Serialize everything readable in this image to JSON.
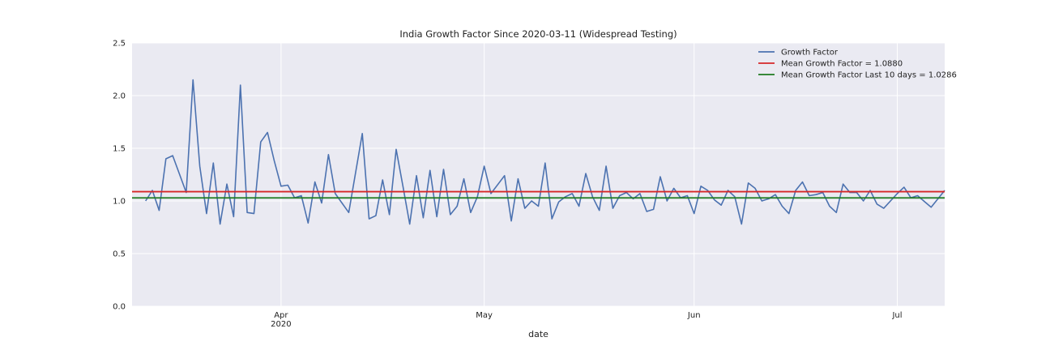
{
  "chart_data": {
    "type": "line",
    "title": "India Growth Factor Since 2020-03-11 (Widespread Testing)",
    "xlabel": "date",
    "ylabel": "",
    "ylim": [
      0.0,
      2.5
    ],
    "y_ticks": [
      0.0,
      0.5,
      1.0,
      1.5,
      2.0,
      2.5
    ],
    "y_tick_labels": [
      "0.0",
      "0.5",
      "1.0",
      "1.5",
      "2.0",
      "2.5"
    ],
    "xlim": [
      "2020-03-10",
      "2020-07-08"
    ],
    "x_ticks": [
      {
        "date": "2020-04-01",
        "label": "Apr",
        "sublabel": "2020"
      },
      {
        "date": "2020-05-01",
        "label": "May",
        "sublabel": ""
      },
      {
        "date": "2020-06-01",
        "label": "Jun",
        "sublabel": ""
      },
      {
        "date": "2020-07-01",
        "label": "Jul",
        "sublabel": ""
      }
    ],
    "grid": true,
    "legend_position": "top-right",
    "colors": {
      "background": "#eaeaf2",
      "growth": "#4c72b0",
      "mean": "#d62728",
      "mean10": "#1f7a1f",
      "grid": "#ffffff"
    },
    "series": [
      {
        "name": "Growth Factor",
        "kind": "line",
        "x": [
          "2020-03-12",
          "2020-03-13",
          "2020-03-14",
          "2020-03-15",
          "2020-03-16",
          "2020-03-18",
          "2020-03-19",
          "2020-03-20",
          "2020-03-21",
          "2020-03-22",
          "2020-03-23",
          "2020-03-24",
          "2020-03-25",
          "2020-03-26",
          "2020-03-27",
          "2020-03-28",
          "2020-03-29",
          "2020-03-30",
          "2020-03-31",
          "2020-04-01",
          "2020-04-02",
          "2020-04-03",
          "2020-04-04",
          "2020-04-05",
          "2020-04-06",
          "2020-04-07",
          "2020-04-08",
          "2020-04-09",
          "2020-04-10",
          "2020-04-11",
          "2020-04-13",
          "2020-04-14",
          "2020-04-15",
          "2020-04-16",
          "2020-04-17",
          "2020-04-18",
          "2020-04-19",
          "2020-04-20",
          "2020-04-21",
          "2020-04-22",
          "2020-04-23",
          "2020-04-24",
          "2020-04-25",
          "2020-04-26",
          "2020-04-27",
          "2020-04-28",
          "2020-04-29",
          "2020-04-30",
          "2020-05-01",
          "2020-05-02",
          "2020-05-04",
          "2020-05-05",
          "2020-05-06",
          "2020-05-07",
          "2020-05-08",
          "2020-05-09",
          "2020-05-10",
          "2020-05-11",
          "2020-05-12",
          "2020-05-13",
          "2020-05-14",
          "2020-05-15",
          "2020-05-16",
          "2020-05-17",
          "2020-05-18",
          "2020-05-19",
          "2020-05-20",
          "2020-05-21",
          "2020-05-22",
          "2020-05-23",
          "2020-05-24",
          "2020-05-25",
          "2020-05-26",
          "2020-05-27",
          "2020-05-28",
          "2020-05-29",
          "2020-05-30",
          "2020-05-31",
          "2020-06-01",
          "2020-06-02",
          "2020-06-03",
          "2020-06-04",
          "2020-06-05",
          "2020-06-06",
          "2020-06-07",
          "2020-06-08",
          "2020-06-09",
          "2020-06-10",
          "2020-06-11",
          "2020-06-12",
          "2020-06-13",
          "2020-06-14",
          "2020-06-15",
          "2020-06-16",
          "2020-06-17",
          "2020-06-18",
          "2020-06-19",
          "2020-06-20",
          "2020-06-21",
          "2020-06-22",
          "2020-06-23",
          "2020-06-24",
          "2020-06-25",
          "2020-06-26",
          "2020-06-27",
          "2020-06-28",
          "2020-06-29",
          "2020-06-30",
          "2020-07-01",
          "2020-07-02",
          "2020-07-03",
          "2020-07-04",
          "2020-07-06",
          "2020-07-08"
        ],
        "y": [
          1.0,
          1.1,
          0.91,
          1.4,
          1.43,
          1.08,
          2.15,
          1.33,
          0.88,
          1.36,
          0.78,
          1.16,
          0.85,
          2.1,
          0.89,
          0.88,
          1.56,
          1.65,
          1.38,
          1.14,
          1.15,
          1.03,
          1.05,
          0.79,
          1.18,
          0.98,
          1.44,
          1.07,
          0.98,
          0.89,
          1.64,
          0.83,
          0.86,
          1.2,
          0.87,
          1.49,
          1.14,
          0.78,
          1.24,
          0.84,
          1.29,
          0.85,
          1.3,
          0.87,
          0.95,
          1.21,
          0.89,
          1.04,
          1.33,
          1.07,
          1.24,
          0.81,
          1.21,
          0.93,
          1.0,
          0.95,
          1.36,
          0.83,
          0.99,
          1.04,
          1.07,
          0.95,
          1.26,
          1.04,
          0.91,
          1.33,
          0.93,
          1.05,
          1.08,
          1.02,
          1.07,
          0.9,
          0.92,
          1.23,
          1.0,
          1.12,
          1.03,
          1.05,
          0.88,
          1.14,
          1.1,
          1.01,
          0.96,
          1.1,
          1.04,
          0.78,
          1.17,
          1.12,
          1.0,
          1.02,
          1.06,
          0.95,
          0.88,
          1.1,
          1.18,
          1.05,
          1.06,
          1.08,
          0.95,
          0.89,
          1.16,
          1.08,
          1.08,
          1.0,
          1.1,
          0.97,
          0.93,
          1.0,
          1.07,
          1.13,
          1.03,
          1.05,
          0.94,
          1.1
        ]
      },
      {
        "name": "Mean Growth Factor = 1.0880",
        "kind": "hline",
        "value": 1.088
      },
      {
        "name": "Mean Growth Factor Last 10 days = 1.0286",
        "kind": "hline",
        "value": 1.0286
      }
    ]
  }
}
